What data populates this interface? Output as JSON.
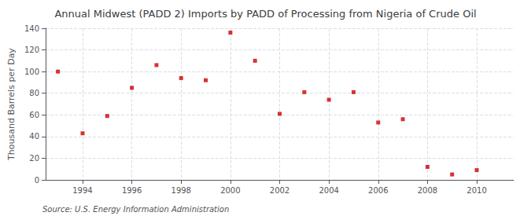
{
  "chart_data": {
    "type": "scatter",
    "title": "Annual Midwest (PADD 2) Imports by PADD of Processing from Nigeria of Crude Oil",
    "ylabel": "Thousand Barrels per Day",
    "annotations": [
      "Source: U.S. Energy Information Administration"
    ],
    "x": [
      1993,
      1994,
      1995,
      1996,
      1997,
      1998,
      1999,
      2000,
      2001,
      2002,
      2003,
      2004,
      2005,
      2006,
      2007,
      2008,
      2009,
      2010
    ],
    "values": [
      100,
      43,
      59,
      85,
      106,
      94,
      92,
      136,
      110,
      61,
      81,
      74,
      81,
      53,
      56,
      12,
      5,
      9
    ],
    "color": "#cc0000",
    "marker": "square",
    "xlim": [
      1992.5,
      2011.5
    ],
    "ylim": [
      0,
      140
    ],
    "xticks": [
      1994,
      1996,
      1998,
      2000,
      2002,
      2004,
      2006,
      2008,
      2010
    ],
    "yticks": [
      0,
      20,
      40,
      60,
      80,
      100,
      120,
      140
    ],
    "grid": true
  }
}
